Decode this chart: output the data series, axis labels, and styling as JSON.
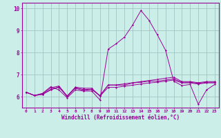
{
  "background_color": "#cceee8",
  "line_color": "#990099",
  "grid_color": "#99bbbb",
  "xlim_min": -0.5,
  "xlim_max": 23.5,
  "ylim_min": 5.5,
  "ylim_max": 10.25,
  "xticks": [
    0,
    1,
    2,
    3,
    4,
    5,
    6,
    7,
    8,
    9,
    10,
    11,
    12,
    13,
    14,
    15,
    16,
    17,
    18,
    19,
    20,
    21,
    22,
    23
  ],
  "yticks": [
    6,
    7,
    8,
    9,
    10
  ],
  "xlabel": "Windchill (Refroidissement éolien,°C)",
  "lines": [
    [
      6.2,
      6.05,
      6.15,
      6.45,
      6.3,
      5.95,
      6.3,
      6.25,
      6.25,
      5.85,
      8.15,
      8.4,
      8.7,
      9.25,
      9.9,
      9.45,
      8.8,
      8.1,
      6.7,
      6.5,
      6.55,
      5.65,
      6.3,
      6.55
    ],
    [
      6.2,
      6.05,
      6.1,
      6.3,
      6.45,
      6.0,
      6.38,
      6.28,
      6.32,
      6.05,
      6.52,
      6.52,
      6.52,
      6.62,
      6.65,
      6.7,
      6.7,
      6.75,
      6.8,
      6.65,
      6.65,
      6.6,
      6.65,
      6.65
    ],
    [
      6.2,
      6.05,
      6.1,
      6.33,
      6.42,
      6.02,
      6.4,
      6.32,
      6.34,
      6.02,
      6.42,
      6.42,
      6.47,
      6.52,
      6.57,
      6.62,
      6.65,
      6.7,
      6.75,
      6.62,
      6.62,
      6.57,
      6.62,
      6.62
    ],
    [
      6.2,
      6.05,
      6.13,
      6.4,
      6.48,
      6.03,
      6.43,
      6.38,
      6.38,
      6.03,
      6.53,
      6.53,
      6.58,
      6.63,
      6.68,
      6.73,
      6.78,
      6.83,
      6.88,
      6.68,
      6.68,
      6.63,
      6.68,
      6.68
    ]
  ]
}
